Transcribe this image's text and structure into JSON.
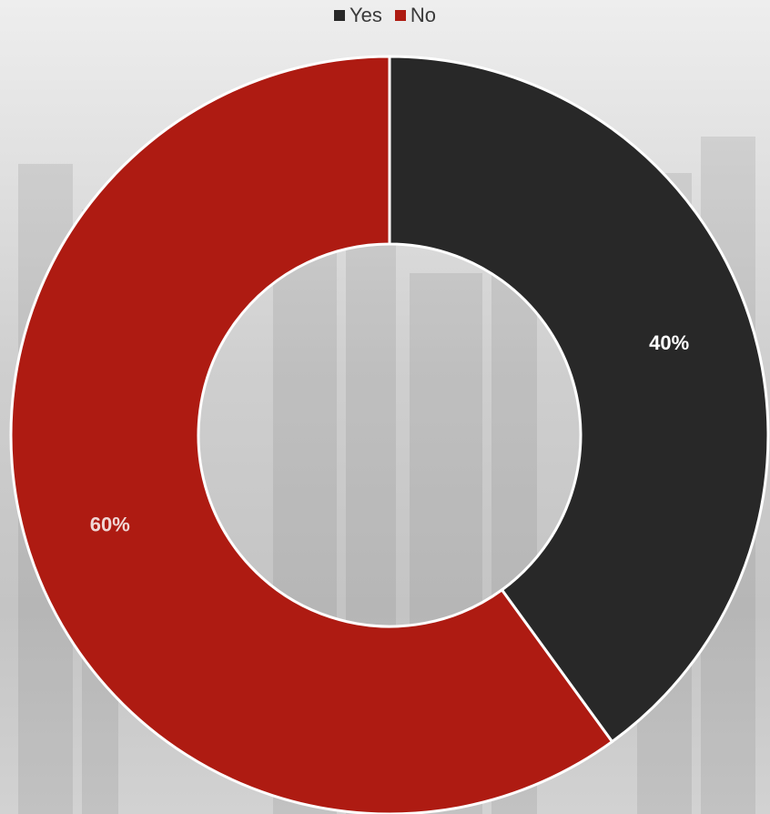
{
  "chart_data": {
    "type": "pie",
    "variant": "donut",
    "legend_position": "top",
    "series": [
      {
        "name": "Yes",
        "value": 40,
        "label": "40%",
        "color": "#282828",
        "label_color": "#ffffff"
      },
      {
        "name": "No",
        "value": 60,
        "label": "60%",
        "color": "#ae1b12",
        "label_color": "#f0d7d5"
      }
    ]
  }
}
